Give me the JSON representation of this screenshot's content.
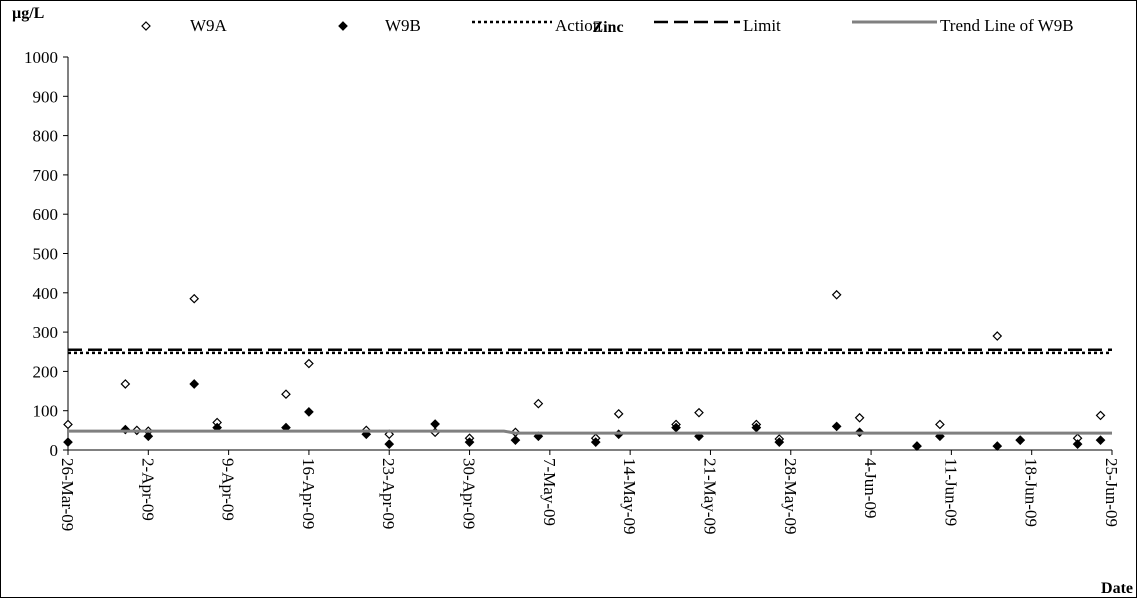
{
  "chart_data": {
    "type": "scatter",
    "title": "Zinc",
    "ylabel": "µg/L",
    "xlabel": "Date",
    "ylim": [
      0,
      1000
    ],
    "yticks": [
      "0",
      "100",
      "200",
      "300",
      "400",
      "500",
      "600",
      "700",
      "800",
      "900",
      "1000"
    ],
    "xlim": [
      "2009-03-26",
      "2009-06-25"
    ],
    "xticks": [
      "26-Mar-09",
      "2-Apr-09",
      "9-Apr-09",
      "16-Apr-09",
      "23-Apr-09",
      "30-Apr-09",
      "7-May-09",
      "14-May-09",
      "21-May-09",
      "28-May-09",
      "4-Jun-09",
      "11-Jun-09",
      "18-Jun-09",
      "25-Jun-09"
    ],
    "grid": false,
    "legend_position": "top",
    "series": [
      {
        "name": "W9A",
        "marker": "open-diamond",
        "color": "#000000",
        "points": [
          {
            "x": "2009-03-26",
            "y": 65
          },
          {
            "x": "2009-03-31",
            "y": 168
          },
          {
            "x": "2009-04-01",
            "y": 50
          },
          {
            "x": "2009-04-02",
            "y": 48
          },
          {
            "x": "2009-04-06",
            "y": 385
          },
          {
            "x": "2009-04-08",
            "y": 70
          },
          {
            "x": "2009-04-14",
            "y": 142
          },
          {
            "x": "2009-04-16",
            "y": 220
          },
          {
            "x": "2009-04-21",
            "y": 50
          },
          {
            "x": "2009-04-23",
            "y": 40
          },
          {
            "x": "2009-04-27",
            "y": 45
          },
          {
            "x": "2009-04-30",
            "y": 30
          },
          {
            "x": "2009-05-04",
            "y": 45
          },
          {
            "x": "2009-05-06",
            "y": 118
          },
          {
            "x": "2009-05-11",
            "y": 30
          },
          {
            "x": "2009-05-13",
            "y": 92
          },
          {
            "x": "2009-05-18",
            "y": 65
          },
          {
            "x": "2009-05-20",
            "y": 95
          },
          {
            "x": "2009-05-25",
            "y": 65
          },
          {
            "x": "2009-05-27",
            "y": 28
          },
          {
            "x": "2009-06-01",
            "y": 395
          },
          {
            "x": "2009-06-03",
            "y": 82
          },
          {
            "x": "2009-06-08",
            "y": 10
          },
          {
            "x": "2009-06-10",
            "y": 65
          },
          {
            "x": "2009-06-15",
            "y": 290
          },
          {
            "x": "2009-06-17",
            "y": 25
          },
          {
            "x": "2009-06-22",
            "y": 30
          },
          {
            "x": "2009-06-24",
            "y": 88
          }
        ]
      },
      {
        "name": "W9B",
        "marker": "filled-diamond",
        "color": "#000000",
        "points": [
          {
            "x": "2009-03-26",
            "y": 20
          },
          {
            "x": "2009-03-31",
            "y": 52
          },
          {
            "x": "2009-04-02",
            "y": 35
          },
          {
            "x": "2009-04-06",
            "y": 168
          },
          {
            "x": "2009-04-08",
            "y": 57
          },
          {
            "x": "2009-04-14",
            "y": 57
          },
          {
            "x": "2009-04-16",
            "y": 97
          },
          {
            "x": "2009-04-21",
            "y": 40
          },
          {
            "x": "2009-04-23",
            "y": 15
          },
          {
            "x": "2009-04-27",
            "y": 66
          },
          {
            "x": "2009-04-30",
            "y": 20
          },
          {
            "x": "2009-05-04",
            "y": 25
          },
          {
            "x": "2009-05-06",
            "y": 35
          },
          {
            "x": "2009-05-11",
            "y": 20
          },
          {
            "x": "2009-05-13",
            "y": 40
          },
          {
            "x": "2009-05-18",
            "y": 57
          },
          {
            "x": "2009-05-20",
            "y": 35
          },
          {
            "x": "2009-05-25",
            "y": 57
          },
          {
            "x": "2009-05-27",
            "y": 20
          },
          {
            "x": "2009-06-01",
            "y": 60
          },
          {
            "x": "2009-06-03",
            "y": 45
          },
          {
            "x": "2009-06-08",
            "y": 10
          },
          {
            "x": "2009-06-10",
            "y": 35
          },
          {
            "x": "2009-06-15",
            "y": 10
          },
          {
            "x": "2009-06-17",
            "y": 25
          },
          {
            "x": "2009-06-22",
            "y": 15
          },
          {
            "x": "2009-06-24",
            "y": 25
          }
        ]
      },
      {
        "name": "Action",
        "style": "dotted",
        "color": "#000000",
        "points": [
          {
            "x": "2009-03-26",
            "y": 247
          },
          {
            "x": "2009-06-25",
            "y": 247
          }
        ]
      },
      {
        "name": "Limit",
        "style": "dashed",
        "color": "#000000",
        "points": [
          {
            "x": "2009-03-26",
            "y": 255
          },
          {
            "x": "2009-06-25",
            "y": 255
          }
        ]
      },
      {
        "name": "Trend Line of W9B",
        "style": "solid-thick",
        "color": "#808080",
        "points": [
          {
            "x": "2009-03-26",
            "y": 48
          },
          {
            "x": "2009-05-03",
            "y": 48
          },
          {
            "x": "2009-05-04",
            "y": 43
          },
          {
            "x": "2009-06-25",
            "y": 43
          }
        ]
      }
    ]
  }
}
